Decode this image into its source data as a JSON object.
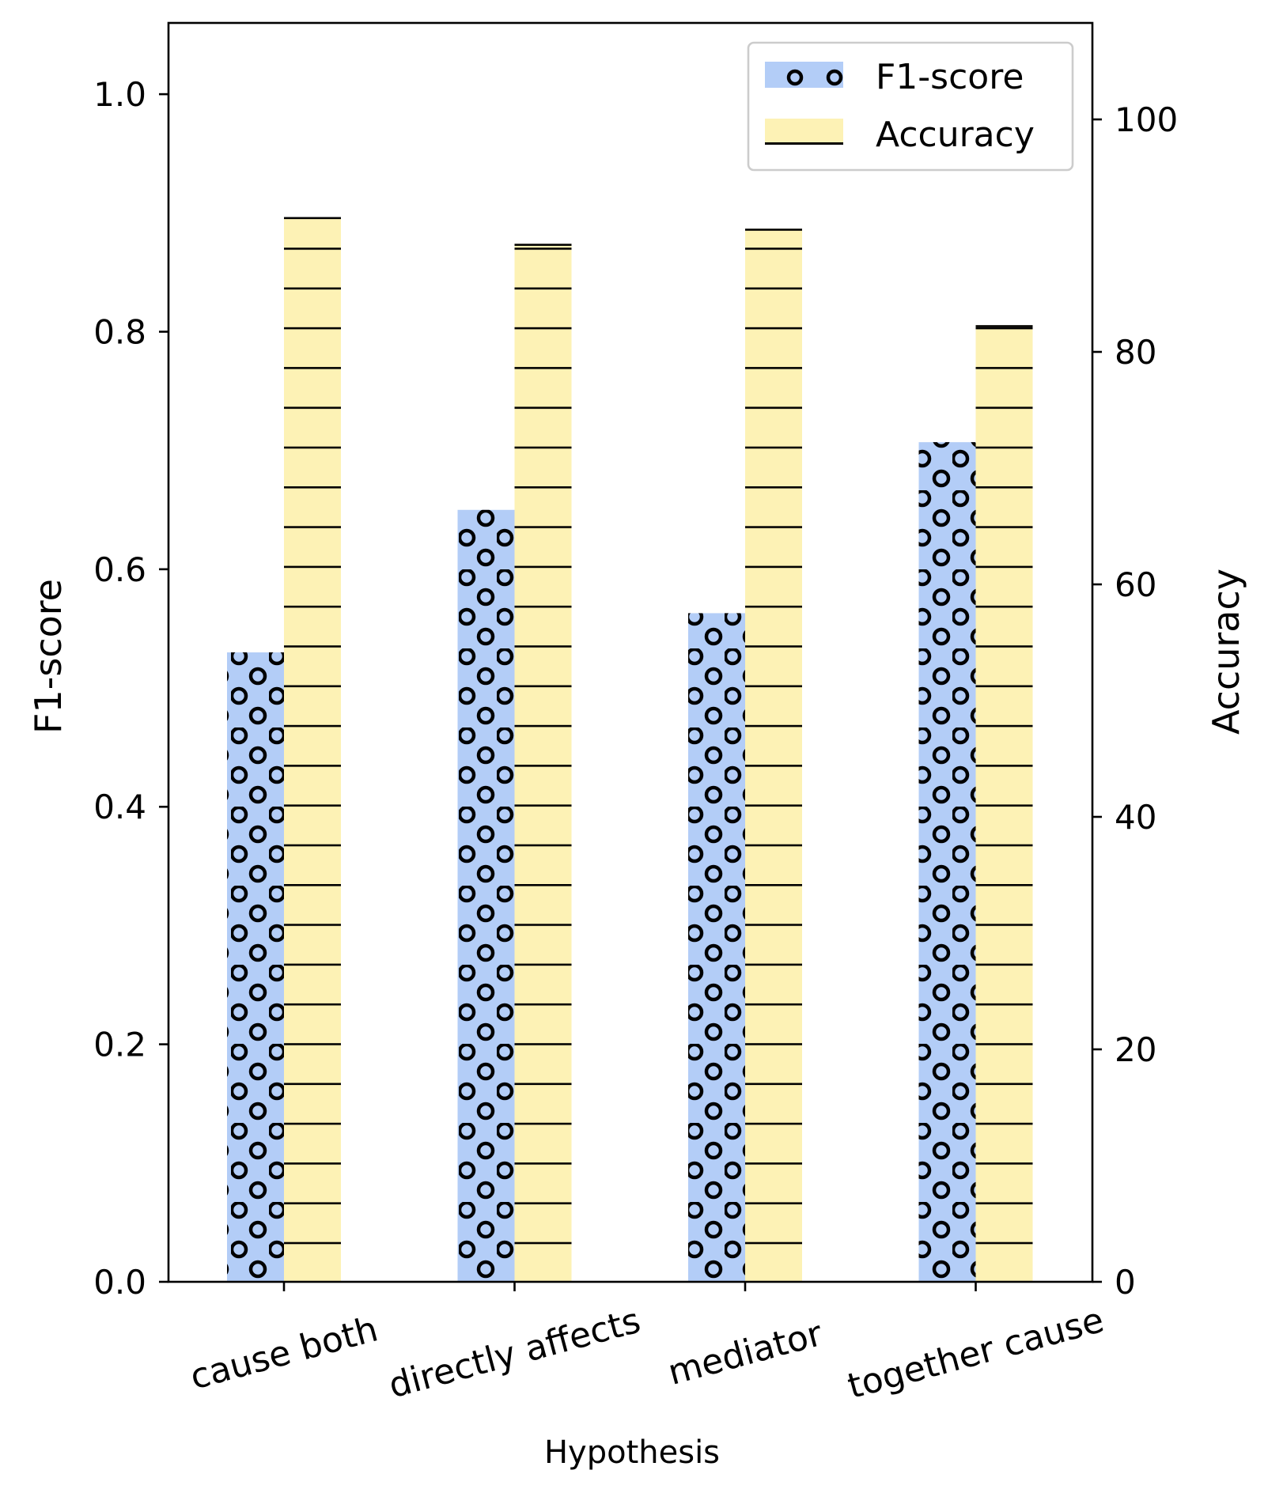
{
  "chart_data": {
    "type": "bar",
    "title": "",
    "xlabel": "Hypothesis",
    "categories": [
      "cause both",
      "directly affects",
      "mediator",
      "together cause"
    ],
    "series": [
      {
        "name": "F1-score",
        "axis": "left",
        "values": [
          0.53,
          0.65,
          0.563,
          0.707
        ],
        "color": "#b3cdf7",
        "hatch": "circles"
      },
      {
        "name": "Accuracy",
        "axis": "right",
        "values": [
          91.6,
          89.3,
          90.6,
          82.3
        ],
        "color": "#fdf2b5",
        "hatch": "horizontal-lines"
      }
    ],
    "y_left": {
      "label": "F1-score",
      "lim": [
        0,
        1.06
      ],
      "ticks": [
        0.0,
        0.2,
        0.4,
        0.6,
        0.8,
        1.0
      ],
      "tick_labels": [
        "0.0",
        "0.2",
        "0.4",
        "0.6",
        "0.8",
        "1.0"
      ]
    },
    "y_right": {
      "label": "Accuracy",
      "lim": [
        0,
        108.3
      ],
      "ticks": [
        0,
        20,
        40,
        60,
        80,
        100
      ],
      "tick_labels": [
        "0",
        "20",
        "40",
        "60",
        "80",
        "100"
      ]
    },
    "legend": {
      "placement": "top-right",
      "entries": [
        "F1-score",
        "Accuracy"
      ]
    },
    "grid": false,
    "colors": {
      "axis": "#000000",
      "f1_fill": "#b3cdf7",
      "accuracy_fill": "#fdf2b5",
      "hatch": "#000000",
      "legend_border": "#cccccc"
    }
  }
}
